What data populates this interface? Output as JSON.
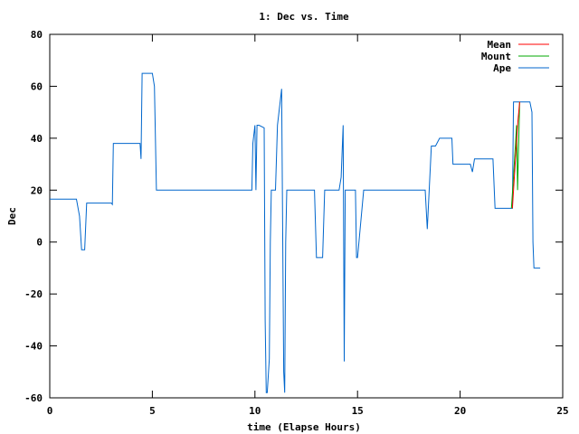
{
  "chart_data": {
    "type": "line",
    "title": "1: Dec vs. Time",
    "xlabel": "time (Elapse Hours)",
    "ylabel": "Dec",
    "xlim": [
      0,
      25
    ],
    "ylim": [
      -60,
      80
    ],
    "x_ticks": [
      0,
      5,
      10,
      15,
      20,
      25
    ],
    "y_ticks": [
      -60,
      -40,
      -20,
      0,
      20,
      40,
      60,
      80
    ],
    "grid": false,
    "legend_position": "top-right",
    "series": [
      {
        "name": "Mean",
        "color": "#ff0000",
        "x": [
          22.55,
          22.8,
          22.9
        ],
        "y": [
          13,
          45,
          54
        ]
      },
      {
        "name": "Mount",
        "color": "#00aa00",
        "x": [
          22.5,
          22.6,
          22.75,
          22.8,
          22.9
        ],
        "y": [
          13,
          25,
          45,
          20,
          54
        ]
      },
      {
        "name": "Ape",
        "color": "#0066cc",
        "x": [
          0,
          1.3,
          1.45,
          1.55,
          1.7,
          1.8,
          3.0,
          3.05,
          3.1,
          4.4,
          4.45,
          4.5,
          4.6,
          5.0,
          5.1,
          5.2,
          5.35,
          9.85,
          9.9,
          10.0,
          10.05,
          10.1,
          10.15,
          10.2,
          10.45,
          10.5,
          10.55,
          10.6,
          10.7,
          10.75,
          10.8,
          11.0,
          11.1,
          11.3,
          11.4,
          11.45,
          11.5,
          11.55,
          11.6,
          11.7,
          11.8,
          11.9,
          12.0,
          12.9,
          13.0,
          13.3,
          13.4,
          14.0,
          14.1,
          14.2,
          14.3,
          14.35,
          14.4,
          14.45,
          14.5,
          14.9,
          14.95,
          15.0,
          15.3,
          15.35,
          18.2,
          18.3,
          18.4,
          18.6,
          18.8,
          19.0,
          19.6,
          19.65,
          20.5,
          20.6,
          20.7,
          21.6,
          21.7,
          22.5,
          22.55,
          22.6,
          23.4,
          23.5,
          23.55,
          23.6,
          23.7,
          23.9
        ],
        "y": [
          16.5,
          16.5,
          10,
          -3,
          -3,
          15,
          15,
          14.5,
          38,
          38,
          32,
          65,
          65,
          65,
          60,
          20,
          20,
          20,
          38,
          45,
          20,
          45,
          45,
          45,
          44,
          -30,
          -58,
          -58,
          -45,
          0,
          20,
          20,
          45,
          59,
          -50,
          -58,
          0,
          20,
          20,
          20,
          20,
          20,
          20,
          20,
          -6,
          -6,
          20,
          20,
          20,
          25,
          45,
          -46,
          20,
          20,
          20,
          20,
          -6,
          -6,
          20,
          20,
          20,
          20,
          5,
          37,
          37,
          40,
          40,
          30,
          30,
          27,
          32,
          32,
          13,
          13,
          13,
          54,
          54,
          50,
          0,
          -10,
          -10,
          -10
        ]
      }
    ]
  }
}
